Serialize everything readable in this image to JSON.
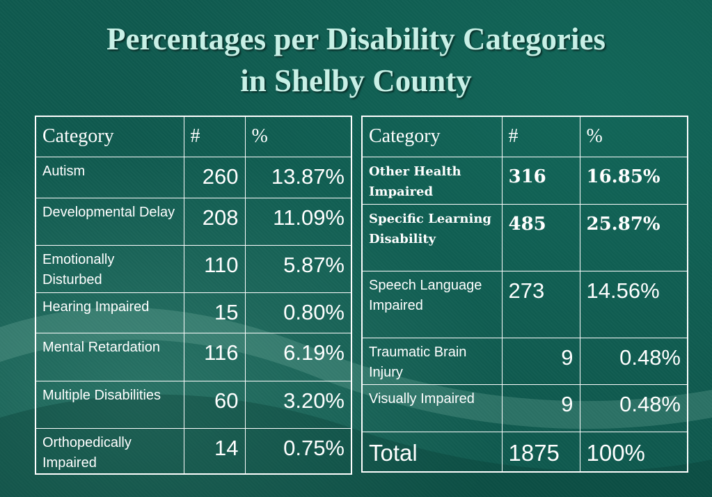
{
  "title": {
    "line1": "Percentages per Disability Categories",
    "line2": "in Shelby County"
  },
  "left_table": {
    "headers": [
      "Category",
      "#",
      "%"
    ],
    "rows": [
      {
        "category": "Autism",
        "count": "260",
        "percent": "13.87%"
      },
      {
        "category": "Developmental Delay",
        "count": "208",
        "percent": "11.09%"
      },
      {
        "category": "Emotionally Disturbed",
        "count": "110",
        "percent": "5.87%"
      },
      {
        "category": "Hearing Impaired",
        "count": "15",
        "percent": "0.80%"
      },
      {
        "category": "Mental Retardation",
        "count": "116",
        "percent": "6.19%"
      },
      {
        "category": "Multiple Disabilities",
        "count": "60",
        "percent": "3.20%"
      },
      {
        "category": "Orthopedically Impaired",
        "count": "14",
        "percent": "0.75%"
      }
    ]
  },
  "right_table": {
    "headers": [
      "Category",
      "#",
      "%"
    ],
    "rows": [
      {
        "category": "Other Health Impaired",
        "count": "316",
        "percent": "16.85%"
      },
      {
        "category": "Specific Learning Disability",
        "count": "485",
        "percent": "25.87%"
      },
      {
        "category": "Speech Language Impaired",
        "count": "273",
        "percent": "14.56%"
      },
      {
        "category": "Traumatic Brain Injury",
        "count": "9",
        "percent": "0.48%"
      },
      {
        "category": "Visually Impaired",
        "count": "9",
        "percent": "0.48%"
      }
    ],
    "total": {
      "category": "Total",
      "count": "1875",
      "percent": "100%"
    }
  },
  "colors": {
    "background": "#0f5a4f",
    "title": "#c8f0e6",
    "text": "#ffffff"
  }
}
